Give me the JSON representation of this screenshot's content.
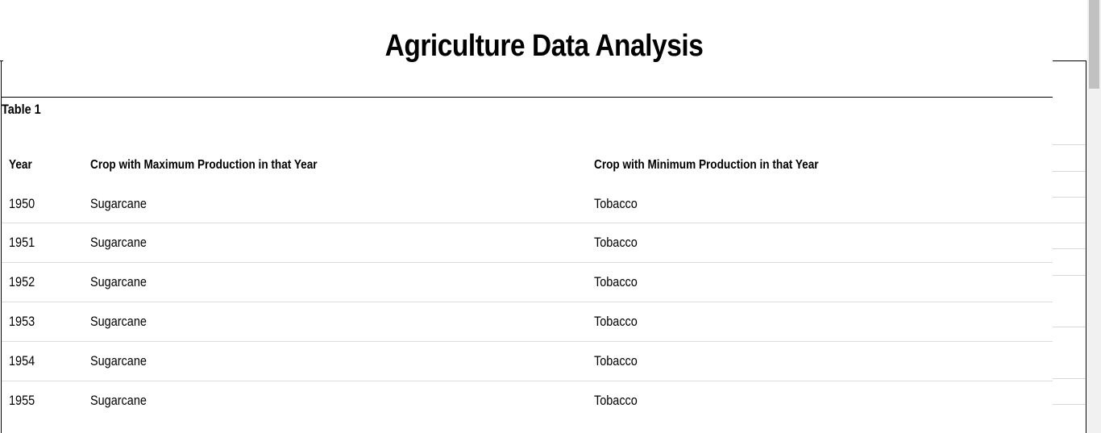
{
  "page": {
    "title": "Agriculture Data Analysis"
  },
  "table": {
    "caption": "Table 1",
    "headers": [
      "Year",
      "Crop with Maximum Production in that Year",
      "Crop with Minimum Production in that Year"
    ],
    "rows": [
      [
        "1950",
        "Sugarcane",
        "Tobacco"
      ],
      [
        "1951",
        "Sugarcane",
        "Tobacco"
      ],
      [
        "1952",
        "Sugarcane",
        "Tobacco"
      ],
      [
        "1953",
        "Sugarcane",
        "Tobacco"
      ],
      [
        "1954",
        "Sugarcane",
        "Tobacco"
      ],
      [
        "1955",
        "Sugarcane",
        "Tobacco"
      ]
    ]
  },
  "colors": {
    "row_divider": "#dcdcdc",
    "scrollbar_track": "#f1f1f1",
    "scrollbar_thumb": "#c1c1c1"
  }
}
